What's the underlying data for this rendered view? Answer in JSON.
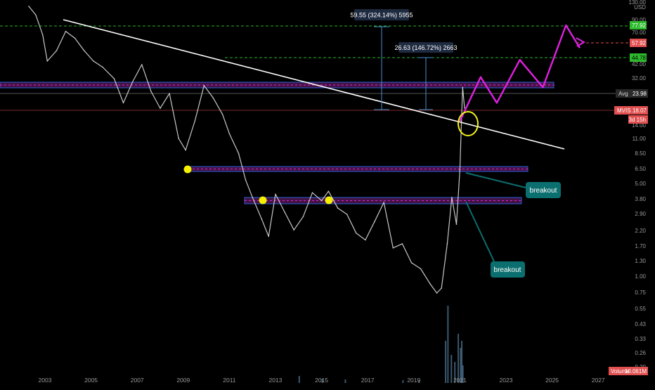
{
  "chart_data": {
    "type": "line",
    "symbol": "MVIS",
    "currency": "USD",
    "scale": "log",
    "grid": false,
    "x_ticks": [
      "2003",
      "2005",
      "2007",
      "2009",
      "2011",
      "2013",
      "2015",
      "2017",
      "2019",
      "2021",
      "2023",
      "2025",
      "2027"
    ],
    "y_ticks": [
      "130.00",
      "90.00",
      "70.00",
      "54.00",
      "42.00",
      "32.00",
      "24.00",
      "18.00",
      "14.00",
      "11.00",
      "8.50",
      "6.50",
      "5.00",
      "3.80",
      "2.90",
      "2.20",
      "1.70",
      "1.30",
      "1.00",
      "0.75",
      "0.55",
      "0.43",
      "0.33",
      "0.26",
      "0.20"
    ],
    "series": [
      {
        "name": "",
        "color": "#c8c8c8",
        "x": [
          2002.3,
          2002.6,
          2002.9,
          2003.1,
          2003.5,
          2003.9,
          2004.3,
          2004.7,
          2005.1,
          2005.5,
          2006.0,
          2006.4,
          2006.8,
          2007.2,
          2007.6,
          2008.0,
          2008.4,
          2008.8,
          2009.1,
          2009.5,
          2009.9,
          2010.3,
          2010.7,
          2011.0,
          2011.4,
          2011.7,
          2012.0,
          2012.4,
          2012.7,
          2013.0,
          2013.4,
          2013.8,
          2014.2,
          2014.6,
          2015.0,
          2015.3,
          2015.7,
          2016.1,
          2016.5,
          2016.9,
          2017.3,
          2017.7,
          2018.1,
          2018.5,
          2018.9,
          2019.3,
          2019.7,
          2020.0,
          2020.2,
          2020.45,
          2020.65,
          2020.85,
          2021.0,
          2021.07,
          2021.12,
          2021.2
        ],
        "y": [
          130,
          110,
          75,
          45,
          55,
          80,
          70,
          55,
          45,
          40,
          32,
          20,
          30,
          42,
          25,
          18,
          24,
          10,
          8,
          14,
          28,
          22,
          16,
          11,
          7.5,
          4.5,
          3.2,
          2.1,
          1.5,
          3.4,
          2.4,
          1.7,
          2.2,
          3.5,
          3.0,
          3.6,
          2.6,
          2.3,
          1.6,
          1.4,
          2.0,
          2.9,
          1.2,
          1.3,
          0.9,
          0.8,
          0.6,
          0.5,
          0.55,
          1.3,
          3.2,
          1.9,
          5.5,
          14.5,
          27,
          18.07
        ]
      }
    ],
    "avg_label": "Avg",
    "avg_value": "23.98",
    "last_value": "18.07",
    "countdown": "3d 15h",
    "volume_label": "Volume",
    "volume_value": "10.061M",
    "price_tags": [
      "77.92",
      "57.92",
      "44.78"
    ],
    "measure_1": "59.55 (324.14%) 5955",
    "measure_2": "26.63 (146.72%) 2663",
    "annotation_1": "breakout",
    "annotation_2": "breakout",
    "projection_path": {
      "x": [
        2021.0,
        2021.9,
        2022.6,
        2023.6,
        2024.6,
        2025.6,
        2026.2
      ],
      "y": [
        14,
        33,
        20,
        46,
        27,
        90,
        58
      ]
    },
    "colors": {
      "accent_magenta": "#e020e0",
      "level_green": "#28b428",
      "level_red": "#e05050",
      "callout_teal": "#0c6f6f",
      "highlight_yellow": "#f3f31a",
      "zone_purple": "#5a1a5a",
      "zone_blue_edge": "#2a5fd8"
    }
  }
}
